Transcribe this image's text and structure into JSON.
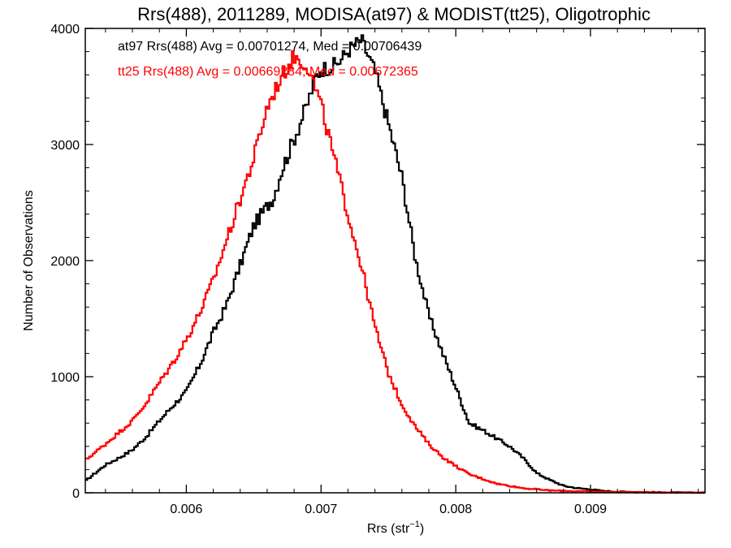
{
  "chart_data": {
    "type": "line",
    "title": "Rrs(488), 2011289, MODISA(at97) & MODIST(tt25), Oligotrophic",
    "xlabel": "Rrs (str",
    "xlabel_sup": "−1",
    "xlabel_close": ")",
    "ylabel": "Number of Observations",
    "xlim": [
      0.00525,
      0.00985
    ],
    "ylim": [
      0,
      4000
    ],
    "xticks": [
      0.006,
      0.007,
      0.008,
      0.009
    ],
    "xtick_labels": [
      "0.006",
      "0.007",
      "0.008",
      "0.009"
    ],
    "yticks": [
      0,
      1000,
      2000,
      3000,
      4000
    ],
    "ytick_labels": [
      "0",
      "1000",
      "2000",
      "3000",
      "4000"
    ],
    "grid": false,
    "annotations": [
      {
        "text": "at97 Rrs(488) Avg = 0.00701274, Med = 0.00706439",
        "color": "#000000"
      },
      {
        "text": "tt25 Rrs(488) Avg = 0.00669284, Med = 0.00672365",
        "color": "#ff0000"
      }
    ],
    "series": [
      {
        "color": "#000000",
        "x": [
          0.00525,
          0.0054,
          0.0055,
          0.0056,
          0.0057,
          0.0058,
          0.0059,
          0.006,
          0.0061,
          0.0062,
          0.0063,
          0.0064,
          0.0065,
          0.0066,
          0.00665,
          0.0067,
          0.0068,
          0.0069,
          0.00695,
          0.007,
          0.0071,
          0.00715,
          0.0072,
          0.0073,
          0.0074,
          0.0075,
          0.0076,
          0.0077,
          0.0078,
          0.0079,
          0.008,
          0.0081,
          0.0082,
          0.0083,
          0.0084,
          0.0085,
          0.0086,
          0.0087,
          0.0088,
          0.0089,
          0.009,
          0.0091,
          0.0092,
          0.0094,
          0.0096,
          0.00985
        ],
        "y": [
          100,
          240,
          300,
          370,
          480,
          620,
          750,
          870,
          1100,
          1380,
          1620,
          1960,
          2300,
          2470,
          2550,
          2750,
          3050,
          3350,
          3550,
          3650,
          3680,
          3730,
          3810,
          3900,
          3630,
          3180,
          2720,
          2020,
          1530,
          1210,
          910,
          600,
          540,
          470,
          400,
          300,
          170,
          110,
          60,
          40,
          30,
          15,
          10,
          5,
          2,
          0
        ]
      },
      {
        "color": "#ff0000",
        "x": [
          0.00525,
          0.0054,
          0.0055,
          0.0056,
          0.0057,
          0.0058,
          0.0059,
          0.006,
          0.0061,
          0.0062,
          0.0063,
          0.0064,
          0.0065,
          0.0066,
          0.0067,
          0.0068,
          0.0069,
          0.007,
          0.0071,
          0.0072,
          0.0073,
          0.0074,
          0.0075,
          0.0076,
          0.0077,
          0.0078,
          0.0079,
          0.008,
          0.0081,
          0.0082,
          0.0083,
          0.0085,
          0.0087,
          0.009,
          0.0093,
          0.0096,
          0.00985
        ],
        "y": [
          280,
          420,
          520,
          620,
          770,
          950,
          1120,
          1320,
          1550,
          1830,
          2180,
          2530,
          2880,
          3320,
          3570,
          3760,
          3680,
          3340,
          2870,
          2400,
          1950,
          1430,
          1030,
          760,
          570,
          420,
          310,
          230,
          160,
          120,
          80,
          40,
          20,
          10,
          5,
          2,
          0
        ]
      }
    ]
  }
}
